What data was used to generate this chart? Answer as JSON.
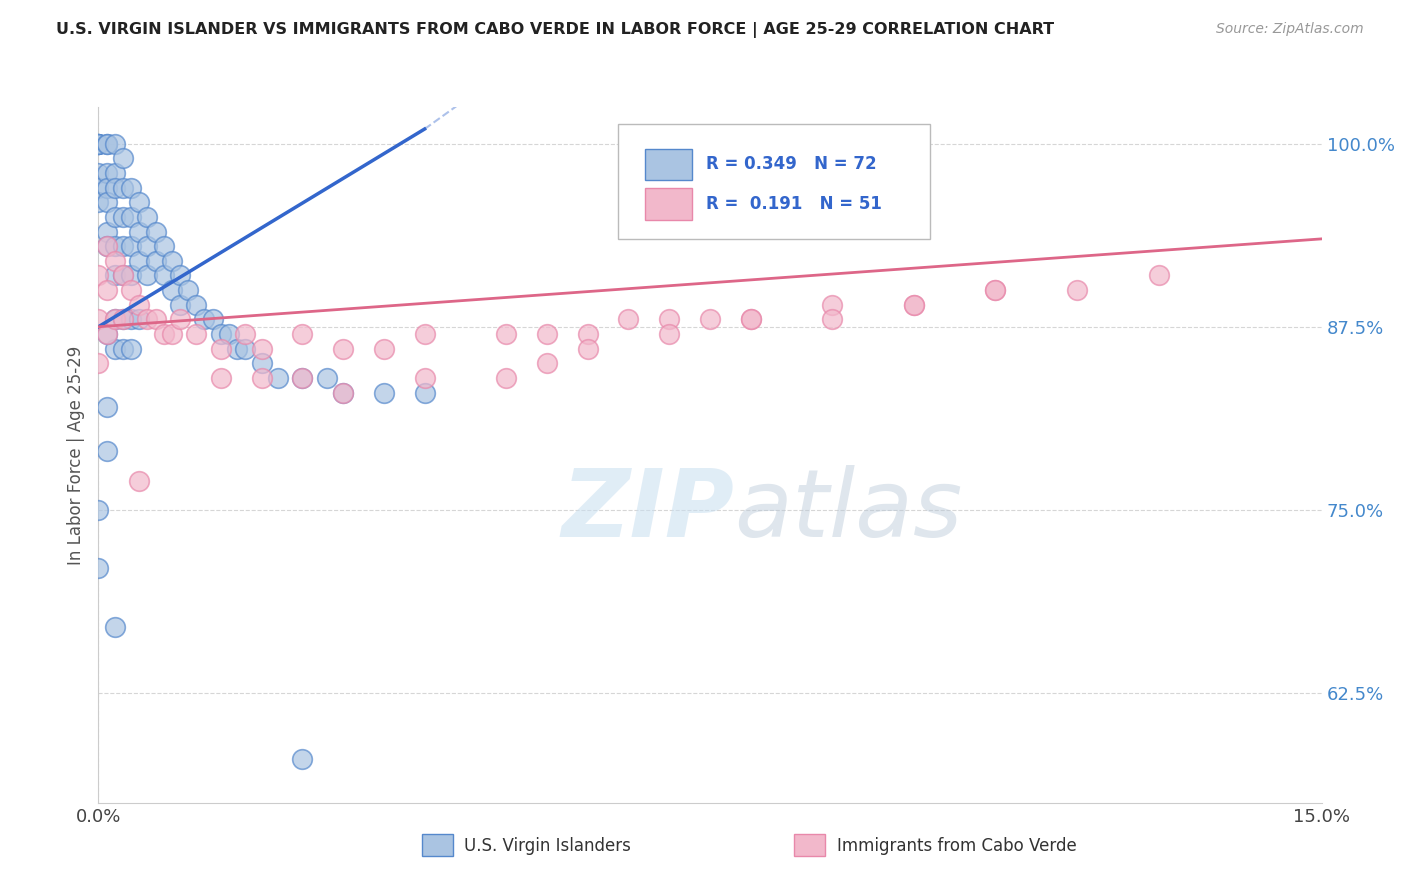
{
  "title": "U.S. VIRGIN ISLANDER VS IMMIGRANTS FROM CABO VERDE IN LABOR FORCE | AGE 25-29 CORRELATION CHART",
  "source": "Source: ZipAtlas.com",
  "ylabel": "In Labor Force | Age 25-29",
  "xmin": 0.0,
  "xmax": 0.15,
  "ymin": 0.55,
  "ymax": 1.025,
  "yticks": [
    0.625,
    0.75,
    0.875,
    1.0
  ],
  "ytick_labels": [
    "62.5%",
    "75.0%",
    "87.5%",
    "100.0%"
  ],
  "xticks": [
    0.0,
    0.15
  ],
  "xtick_labels": [
    "0.0%",
    "15.0%"
  ],
  "blue_R": "0.349",
  "blue_N": "72",
  "pink_R": "0.191",
  "pink_N": "51",
  "blue_color": "#aac4e2",
  "pink_color": "#f2b8cb",
  "blue_edge_color": "#5588cc",
  "pink_edge_color": "#e888aa",
  "blue_line_color": "#3366cc",
  "pink_line_color": "#dd6688",
  "watermark_zip": "ZIP",
  "watermark_atlas": "atlas",
  "blue_scatter_x": [
    0.0,
    0.0,
    0.0,
    0.0,
    0.0,
    0.0,
    0.0,
    0.001,
    0.001,
    0.001,
    0.001,
    0.001,
    0.001,
    0.001,
    0.002,
    0.002,
    0.002,
    0.002,
    0.002,
    0.002,
    0.003,
    0.003,
    0.003,
    0.003,
    0.003,
    0.004,
    0.004,
    0.004,
    0.004,
    0.005,
    0.005,
    0.005,
    0.006,
    0.006,
    0.006,
    0.007,
    0.007,
    0.008,
    0.008,
    0.009,
    0.009,
    0.01,
    0.01,
    0.011,
    0.012,
    0.013,
    0.014,
    0.015,
    0.016,
    0.017,
    0.018,
    0.02,
    0.022,
    0.025,
    0.028,
    0.03,
    0.035,
    0.04,
    0.002,
    0.002,
    0.003,
    0.003,
    0.004,
    0.004,
    0.005,
    0.001,
    0.001,
    0.0,
    0.0,
    0.001,
    0.025,
    0.002
  ],
  "blue_scatter_y": [
    1.0,
    1.0,
    1.0,
    1.0,
    0.98,
    0.97,
    0.96,
    1.0,
    1.0,
    0.98,
    0.97,
    0.96,
    0.94,
    0.93,
    1.0,
    0.98,
    0.97,
    0.95,
    0.93,
    0.91,
    0.99,
    0.97,
    0.95,
    0.93,
    0.91,
    0.97,
    0.95,
    0.93,
    0.91,
    0.96,
    0.94,
    0.92,
    0.95,
    0.93,
    0.91,
    0.94,
    0.92,
    0.93,
    0.91,
    0.92,
    0.9,
    0.91,
    0.89,
    0.9,
    0.89,
    0.88,
    0.88,
    0.87,
    0.87,
    0.86,
    0.86,
    0.85,
    0.84,
    0.84,
    0.84,
    0.83,
    0.83,
    0.83,
    0.88,
    0.86,
    0.88,
    0.86,
    0.88,
    0.86,
    0.88,
    0.82,
    0.79,
    0.75,
    0.71,
    0.87,
    0.58,
    0.67
  ],
  "pink_scatter_x": [
    0.0,
    0.0,
    0.0,
    0.001,
    0.001,
    0.001,
    0.002,
    0.002,
    0.003,
    0.003,
    0.004,
    0.005,
    0.006,
    0.007,
    0.008,
    0.009,
    0.01,
    0.012,
    0.015,
    0.018,
    0.02,
    0.025,
    0.03,
    0.035,
    0.04,
    0.05,
    0.055,
    0.06,
    0.065,
    0.07,
    0.075,
    0.08,
    0.09,
    0.1,
    0.11,
    0.12,
    0.13,
    0.015,
    0.02,
    0.025,
    0.03,
    0.04,
    0.05,
    0.055,
    0.06,
    0.07,
    0.08,
    0.09,
    0.1,
    0.11,
    0.005
  ],
  "pink_scatter_y": [
    0.91,
    0.88,
    0.85,
    0.93,
    0.9,
    0.87,
    0.92,
    0.88,
    0.91,
    0.88,
    0.9,
    0.89,
    0.88,
    0.88,
    0.87,
    0.87,
    0.88,
    0.87,
    0.86,
    0.87,
    0.86,
    0.87,
    0.86,
    0.86,
    0.87,
    0.87,
    0.87,
    0.87,
    0.88,
    0.88,
    0.88,
    0.88,
    0.89,
    0.89,
    0.9,
    0.9,
    0.91,
    0.84,
    0.84,
    0.84,
    0.83,
    0.84,
    0.84,
    0.85,
    0.86,
    0.87,
    0.88,
    0.88,
    0.89,
    0.9,
    0.77
  ]
}
